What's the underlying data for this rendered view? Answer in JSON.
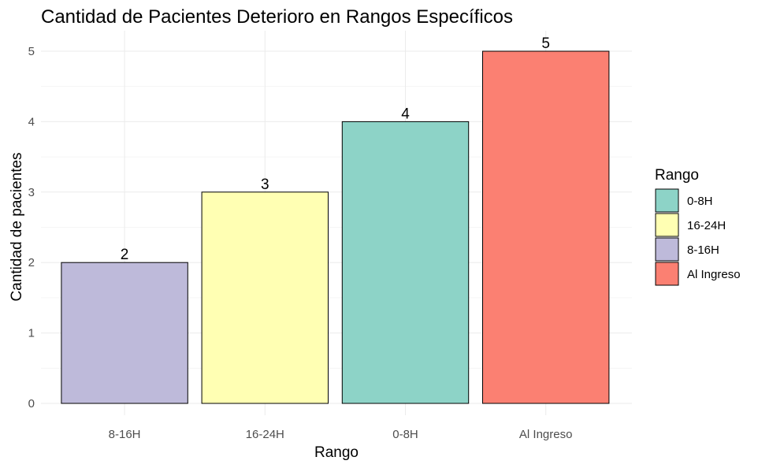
{
  "chart_data": {
    "type": "bar",
    "title": "Cantidad de Pacientes Deterioro en Rangos Específicos",
    "xlabel": "Rango",
    "ylabel": "Cantidad de pacientes",
    "categories": [
      "8-16H",
      "16-24H",
      "0-8H",
      "Al Ingreso"
    ],
    "values": [
      2,
      3,
      4,
      5
    ],
    "data_labels": [
      "2",
      "3",
      "4",
      "5"
    ],
    "bar_colors": [
      "#bebada",
      "#ffffb3",
      "#8dd3c7",
      "#fb8072"
    ],
    "ylim": [
      0,
      5.25
    ],
    "yticks": [
      0,
      1,
      2,
      3,
      4,
      5
    ],
    "grid": true,
    "legend": {
      "title": "Rango",
      "placement": "right",
      "entries": [
        {
          "label": "0-8H",
          "color": "#8dd3c7"
        },
        {
          "label": "16-24H",
          "color": "#ffffb3"
        },
        {
          "label": "8-16H",
          "color": "#bebada"
        },
        {
          "label": "Al Ingreso",
          "color": "#fb8072"
        }
      ]
    }
  }
}
